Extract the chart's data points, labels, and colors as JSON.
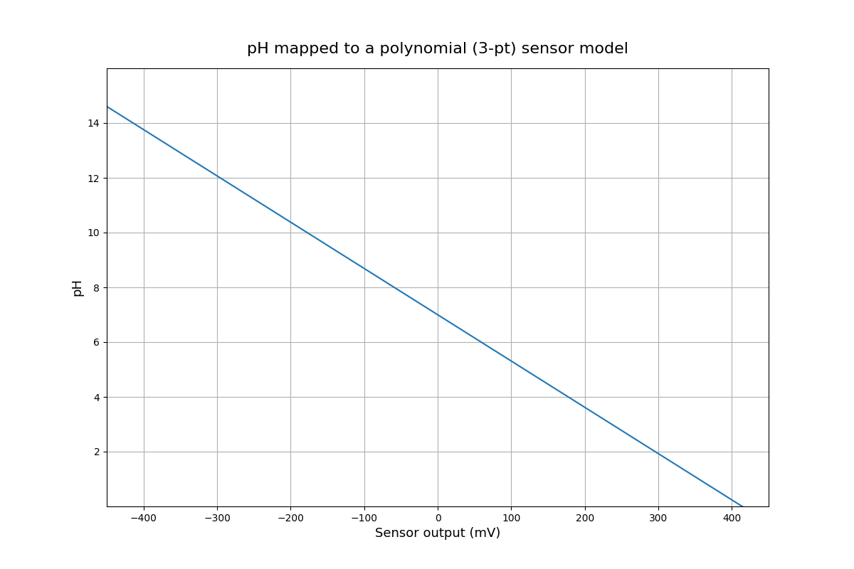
{
  "title": "pH mapped to a polynomial (3-pt) sensor model",
  "xlabel": "Sensor output (mV)",
  "ylabel": "pH",
  "line_color": "#1f77b4",
  "line_width": 1.5,
  "x_min": -450,
  "x_max": 450,
  "y_min": 0,
  "y_max": 16,
  "cal_points": [
    {
      "mv": -177.48,
      "pH": 10
    },
    {
      "mv": 0.0,
      "pH": 7
    },
    {
      "mv": 177.48,
      "pH": 4
    }
  ],
  "grid_color": "#b0b0b0",
  "background_color": "#ffffff",
  "title_fontsize": 16,
  "label_fontsize": 13,
  "xticks": [
    -400,
    -300,
    -200,
    -100,
    0,
    100,
    200,
    300,
    400
  ],
  "yticks": [
    2,
    4,
    6,
    8,
    10,
    12,
    14
  ]
}
